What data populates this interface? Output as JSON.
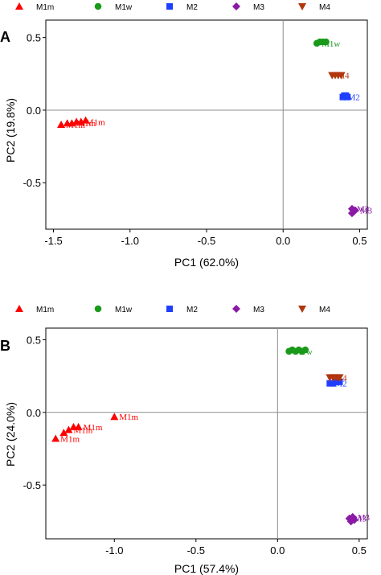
{
  "colors": {
    "M1m": "#ff0000",
    "M1w": "#1a9a1a",
    "M2": "#1f3fff",
    "M3": "#8a1aa6",
    "M4": "#b1360e"
  },
  "markers": {
    "M1m": "triangle-up",
    "M1w": "circle",
    "M2": "square",
    "M3": "diamond",
    "M4": "triangle-down"
  },
  "chart_data": [
    {
      "panel": "A",
      "type": "scatter",
      "legend": [
        "M1m",
        "M1w",
        "M2",
        "M3",
        "M4"
      ],
      "legend_position": "top",
      "xlabel": "PC1 (62.0%)",
      "ylabel": "PC2 (19.8%)",
      "xlim": [
        -1.55,
        0.55
      ],
      "ylim": [
        -0.82,
        0.62
      ],
      "xticks": [
        -1.5,
        -1.0,
        -0.5,
        0.0,
        0.5
      ],
      "xtick_labels": [
        "-1.5",
        "-1.0",
        "-0.5",
        "0.0",
        "0.5"
      ],
      "yticks": [
        0.5,
        0.0,
        -0.5
      ],
      "ytick_labels": [
        "0.5",
        "0.0",
        "-0.5"
      ],
      "zero_lines": true,
      "series": [
        {
          "name": "M1m",
          "points": [
            [
              -1.45,
              -0.1
            ],
            [
              -1.41,
              -0.09
            ],
            [
              -1.38,
              -0.09
            ],
            [
              -1.35,
              -0.08
            ],
            [
              -1.32,
              -0.08
            ],
            [
              -1.29,
              -0.07
            ]
          ],
          "labels": [
            "M1m",
            "M1m",
            "M1m"
          ]
        },
        {
          "name": "M1w",
          "points": [
            [
              0.22,
              0.46
            ],
            [
              0.24,
              0.47
            ],
            [
              0.26,
              0.47
            ],
            [
              0.28,
              0.47
            ]
          ],
          "labels": [
            "M1w"
          ]
        },
        {
          "name": "M2",
          "points": [
            [
              0.39,
              0.09
            ],
            [
              0.4,
              0.1
            ],
            [
              0.41,
              0.1
            ],
            [
              0.42,
              0.09
            ]
          ],
          "labels": [
            "M2"
          ]
        },
        {
          "name": "M3",
          "points": [
            [
              0.45,
              -0.68
            ],
            [
              0.46,
              -0.7
            ],
            [
              0.47,
              -0.69
            ],
            [
              0.45,
              -0.71
            ]
          ],
          "labels": [
            "M3",
            "M3"
          ]
        },
        {
          "name": "M4",
          "points": [
            [
              0.32,
              0.24
            ],
            [
              0.34,
              0.24
            ],
            [
              0.36,
              0.24
            ],
            [
              0.38,
              0.24
            ]
          ],
          "labels": [
            "M4"
          ]
        }
      ]
    },
    {
      "panel": "B",
      "type": "scatter",
      "legend": [
        "M1m",
        "M1w",
        "M2",
        "M3",
        "M4"
      ],
      "legend_position": "top",
      "xlabel": "PC1 (57.4%)",
      "ylabel": "PC2 (24.0%)",
      "xlim": [
        -1.42,
        0.55
      ],
      "ylim": [
        -0.87,
        0.58
      ],
      "xticks": [
        -1.0,
        -0.5,
        0.0,
        0.5
      ],
      "xtick_labels": [
        "-1.0",
        "-0.5",
        "0.0",
        "0.5"
      ],
      "yticks": [
        0.5,
        0.0,
        -0.5
      ],
      "ytick_labels": [
        "0.5",
        "0.0",
        "-0.5"
      ],
      "zero_lines": true,
      "series": [
        {
          "name": "M1m",
          "points": [
            [
              -1.36,
              -0.18
            ],
            [
              -1.31,
              -0.14
            ],
            [
              -1.28,
              -0.12
            ],
            [
              -1.25,
              -0.1
            ],
            [
              -1.22,
              -0.1
            ],
            [
              -1.0,
              -0.03
            ]
          ],
          "labels": [
            "M1m",
            "M1m",
            "M1m",
            "M1m"
          ]
        },
        {
          "name": "M1w",
          "points": [
            [
              0.07,
              0.42
            ],
            [
              0.09,
              0.43
            ],
            [
              0.11,
              0.42
            ],
            [
              0.13,
              0.43
            ],
            [
              0.15,
              0.42
            ],
            [
              0.17,
              0.43
            ]
          ],
          "labels": [
            "M1w"
          ]
        },
        {
          "name": "M2",
          "points": [
            [
              0.32,
              0.2
            ],
            [
              0.34,
              0.2
            ],
            [
              0.36,
              0.21
            ],
            [
              0.38,
              0.21
            ]
          ],
          "labels": [
            "M2"
          ]
        },
        {
          "name": "M3",
          "points": [
            [
              0.44,
              -0.73
            ],
            [
              0.45,
              -0.75
            ],
            [
              0.46,
              -0.72
            ],
            [
              0.47,
              -0.74
            ]
          ],
          "labels": [
            "M3",
            "M3"
          ]
        },
        {
          "name": "M4",
          "points": [
            [
              0.32,
              0.24
            ],
            [
              0.34,
              0.24
            ],
            [
              0.36,
              0.24
            ],
            [
              0.38,
              0.24
            ]
          ],
          "labels": [
            "M4"
          ]
        }
      ]
    }
  ]
}
